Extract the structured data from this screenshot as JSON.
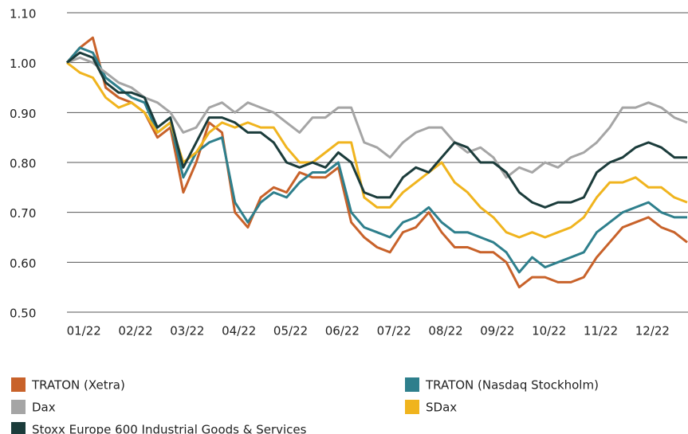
{
  "chart_data": {
    "type": "line",
    "categories": [
      null,
      "01/22",
      null,
      null,
      null,
      "02/22",
      null,
      null,
      null,
      "03/22",
      null,
      null,
      null,
      "04/22",
      null,
      null,
      null,
      "05/22",
      null,
      null,
      null,
      "06/22",
      null,
      null,
      null,
      "07/22",
      null,
      null,
      null,
      "08/22",
      null,
      null,
      null,
      "09/22",
      null,
      null,
      null,
      "10/22",
      null,
      null,
      null,
      "11/22",
      null,
      null,
      null,
      "12/22",
      null,
      null,
      null
    ],
    "ylim": [
      0.5,
      1.1
    ],
    "yticks": [
      {
        "value": 0.5,
        "label": "0.50"
      },
      {
        "value": 0.6,
        "label": "0.60"
      },
      {
        "value": 0.7,
        "label": "0.70"
      },
      {
        "value": 0.8,
        "label": "0.80"
      },
      {
        "value": 0.9,
        "label": "0.90"
      },
      {
        "value": 1.0,
        "label": "1.00"
      },
      {
        "value": 1.1,
        "label": "1.10"
      }
    ],
    "grid": true,
    "series": [
      {
        "name": "TRATON (Xetra)",
        "color": "#c8622a",
        "values": [
          1.0,
          1.03,
          1.05,
          0.95,
          0.93,
          0.92,
          0.9,
          0.85,
          0.87,
          0.74,
          0.8,
          0.88,
          0.86,
          0.7,
          0.67,
          0.73,
          0.75,
          0.74,
          0.78,
          0.77,
          0.77,
          0.79,
          0.68,
          0.65,
          0.63,
          0.62,
          0.66,
          0.67,
          0.7,
          0.66,
          0.63,
          0.63,
          0.62,
          0.62,
          0.6,
          0.55,
          0.57,
          0.57,
          0.56,
          0.56,
          0.57,
          0.61,
          0.64,
          0.67,
          0.68,
          0.69,
          0.67,
          0.66,
          0.64
        ]
      },
      {
        "name": "TRATON (Nasdaq Stockholm)",
        "color": "#2e7f8c",
        "values": [
          1.0,
          1.03,
          1.02,
          0.97,
          0.95,
          0.93,
          0.92,
          0.86,
          0.88,
          0.77,
          0.82,
          0.84,
          0.85,
          0.72,
          0.68,
          0.72,
          0.74,
          0.73,
          0.76,
          0.78,
          0.78,
          0.8,
          0.7,
          0.67,
          0.66,
          0.65,
          0.68,
          0.69,
          0.71,
          0.68,
          0.66,
          0.66,
          0.65,
          0.64,
          0.62,
          0.58,
          0.61,
          0.59,
          0.6,
          0.61,
          0.62,
          0.66,
          0.68,
          0.7,
          0.71,
          0.72,
          0.7,
          0.69,
          0.69
        ]
      },
      {
        "name": "Dax",
        "color": "#a5a5a5",
        "values": [
          1.0,
          1.01,
          1.0,
          0.98,
          0.96,
          0.95,
          0.93,
          0.92,
          0.9,
          0.86,
          0.87,
          0.91,
          0.92,
          0.9,
          0.92,
          0.91,
          0.9,
          0.88,
          0.86,
          0.89,
          0.89,
          0.91,
          0.91,
          0.84,
          0.83,
          0.81,
          0.84,
          0.86,
          0.87,
          0.87,
          0.84,
          0.82,
          0.83,
          0.81,
          0.77,
          0.79,
          0.78,
          0.8,
          0.79,
          0.81,
          0.82,
          0.84,
          0.87,
          0.91,
          0.91,
          0.92,
          0.91,
          0.89,
          0.88
        ]
      },
      {
        "name": "SDax",
        "color": "#f0b41e",
        "values": [
          1.0,
          0.98,
          0.97,
          0.93,
          0.91,
          0.92,
          0.9,
          0.86,
          0.88,
          0.8,
          0.82,
          0.86,
          0.88,
          0.87,
          0.88,
          0.87,
          0.87,
          0.83,
          0.8,
          0.8,
          0.82,
          0.84,
          0.84,
          0.73,
          0.71,
          0.71,
          0.74,
          0.76,
          0.78,
          0.8,
          0.76,
          0.74,
          0.71,
          0.69,
          0.66,
          0.65,
          0.66,
          0.65,
          0.66,
          0.67,
          0.69,
          0.73,
          0.76,
          0.76,
          0.77,
          0.75,
          0.75,
          0.73,
          0.72
        ]
      },
      {
        "name": "Stoxx Europe 600 Industrial Goods & Services",
        "color": "#1b3c3b",
        "values": [
          1.0,
          1.02,
          1.01,
          0.96,
          0.94,
          0.94,
          0.93,
          0.87,
          0.89,
          0.79,
          0.84,
          0.89,
          0.89,
          0.88,
          0.86,
          0.86,
          0.84,
          0.8,
          0.79,
          0.8,
          0.79,
          0.82,
          0.8,
          0.74,
          0.73,
          0.73,
          0.77,
          0.79,
          0.78,
          0.81,
          0.84,
          0.83,
          0.8,
          0.8,
          0.78,
          0.74,
          0.72,
          0.71,
          0.72,
          0.72,
          0.73,
          0.78,
          0.8,
          0.81,
          0.83,
          0.84,
          0.83,
          0.81,
          0.81
        ]
      }
    ]
  }
}
